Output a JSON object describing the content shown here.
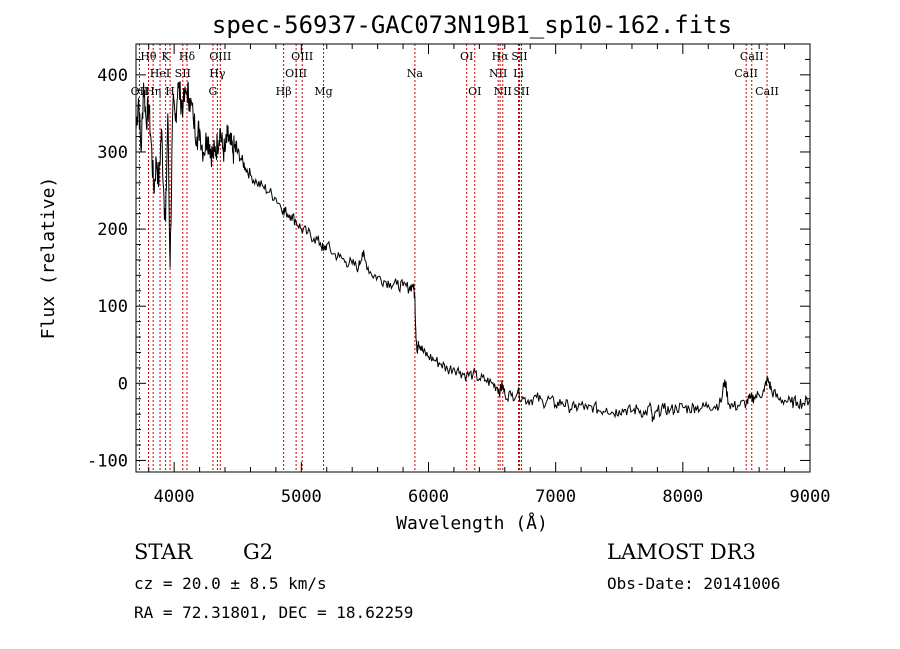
{
  "chart_data": {
    "type": "line",
    "title": "spec-56937-GAC073N19B1_sp10-162.fits",
    "xlabel": "Wavelength (Å)",
    "ylabel": "Flux (relative)",
    "xlim": [
      3700,
      9000
    ],
    "ylim": [
      -115,
      440
    ],
    "xticks": [
      4000,
      5000,
      6000,
      7000,
      8000,
      9000
    ],
    "yticks": [
      -100,
      0,
      100,
      200,
      300,
      400
    ],
    "line_color": "#000000",
    "marker_color": "#cc0000",
    "series": [
      {
        "name": "flux",
        "x": [
          3700,
          3720,
          3740,
          3760,
          3780,
          3800,
          3820,
          3840,
          3860,
          3880,
          3900,
          3920,
          3933,
          3950,
          3968,
          3990,
          4010,
          4030,
          4050,
          4070,
          4101,
          4120,
          4150,
          4180,
          4200,
          4230,
          4260,
          4280,
          4300,
          4320,
          4340,
          4360,
          4380,
          4400,
          4420,
          4440,
          4460,
          4480,
          4500,
          4530,
          4560,
          4600,
          4650,
          4700,
          4750,
          4800,
          4861,
          4880,
          4920,
          4960,
          5000,
          5050,
          5100,
          5150,
          5175,
          5200,
          5250,
          5300,
          5350,
          5400,
          5450,
          5480,
          5500,
          5550,
          5600,
          5650,
          5700,
          5750,
          5800,
          5850,
          5880,
          5893,
          5900,
          5910,
          5920,
          5940,
          5960,
          6000,
          6050,
          6100,
          6150,
          6200,
          6250,
          6300,
          6350,
          6400,
          6450,
          6500,
          6540,
          6563,
          6580,
          6600,
          6650,
          6700,
          6750,
          6800,
          6850,
          6900,
          6950,
          7000,
          7050,
          7100,
          7150,
          7200,
          7250,
          7300,
          7350,
          7400,
          7450,
          7500,
          7550,
          7600,
          7650,
          7700,
          7750,
          7760,
          7800,
          7850,
          7900,
          7950,
          8000,
          8050,
          8100,
          8150,
          8200,
          8250,
          8300,
          8330,
          8360,
          8400,
          8450,
          8500,
          8530,
          8560,
          8600,
          8640,
          8660,
          8680,
          8700,
          8750,
          8800,
          8850,
          8900,
          8950,
          9000
        ],
        "y": [
          330,
          370,
          300,
          390,
          340,
          360,
          310,
          250,
          290,
          260,
          330,
          240,
          210,
          350,
          150,
          360,
          340,
          390,
          370,
          360,
          380,
          370,
          345,
          320,
          330,
          300,
          320,
          310,
          295,
          300,
          310,
          330,
          305,
          300,
          320,
          310,
          300,
          305,
          300,
          290,
          280,
          270,
          260,
          255,
          248,
          240,
          225,
          222,
          218,
          210,
          200,
          195,
          188,
          182,
          172,
          180,
          168,
          164,
          158,
          155,
          150,
          170,
          160,
          142,
          138,
          133,
          130,
          128,
          126,
          124,
          128,
          110,
          70,
          40,
          55,
          48,
          40,
          35,
          30,
          25,
          18,
          20,
          15,
          10,
          12,
          6,
          4,
          0,
          -5,
          -10,
          -2,
          -14,
          -16,
          -12,
          -20,
          -22,
          -18,
          -25,
          -20,
          -28,
          -24,
          -30,
          -32,
          -28,
          -34,
          -30,
          -36,
          -32,
          -38,
          -35,
          -34,
          -36,
          -33,
          -40,
          -30,
          -50,
          -36,
          -33,
          -35,
          -32,
          -31,
          -33,
          -30,
          -32,
          -28,
          -30,
          -25,
          5,
          -26,
          -30,
          -28,
          -25,
          -20,
          -18,
          -15,
          -10,
          5,
          0,
          -10,
          -20,
          -22,
          -25,
          -24,
          -26,
          -20
        ]
      }
    ],
    "spectral_lines": [
      {
        "label": "Hθ",
        "wave": 3798,
        "row": 1
      },
      {
        "label": "OII",
        "wave": 3727,
        "row": 3
      },
      {
        "label": "Hη",
        "wave": 3835,
        "row": 3
      },
      {
        "label": "HeI",
        "wave": 3889,
        "row": 2
      },
      {
        "label": "K",
        "wave": 3933,
        "row": 1
      },
      {
        "label": "H",
        "wave": 3968,
        "row": 3
      },
      {
        "label": "SII",
        "wave": 4068,
        "row": 2
      },
      {
        "label": "Hδ",
        "wave": 4101,
        "row": 1
      },
      {
        "label": "OIII",
        "wave": 4363,
        "row": 1
      },
      {
        "label": "Hγ",
        "wave": 4340,
        "row": 2
      },
      {
        "label": "G",
        "wave": 4305,
        "row": 3
      },
      {
        "label": "Hβ",
        "wave": 4861,
        "row": 3
      },
      {
        "label": "OIII",
        "wave": 4959,
        "row": 2
      },
      {
        "label": "OIII",
        "wave": 5007,
        "row": 1
      },
      {
        "label": "Mg",
        "wave": 5175,
        "row": 3
      },
      {
        "label": "Na",
        "wave": 5893,
        "row": 2
      },
      {
        "label": "OI",
        "wave": 6300,
        "row": 1
      },
      {
        "label": "OI",
        "wave": 6364,
        "row": 3
      },
      {
        "label": "Hα",
        "wave": 6563,
        "row": 1
      },
      {
        "label": "NII",
        "wave": 6548,
        "row": 2
      },
      {
        "label": "NII",
        "wave": 6584,
        "row": 3
      },
      {
        "label": "Li",
        "wave": 6708,
        "row": 2
      },
      {
        "label": "SII",
        "wave": 6716,
        "row": 1
      },
      {
        "label": "SII",
        "wave": 6731,
        "row": 3
      },
      {
        "label": "CaII",
        "wave": 8498,
        "row": 2
      },
      {
        "label": "CaII",
        "wave": 8542,
        "row": 1
      },
      {
        "label": "CaII",
        "wave": 8662,
        "row": 3
      }
    ]
  },
  "info": {
    "object_class": "STAR",
    "subclass": "G2",
    "survey": "LAMOST DR3",
    "redshift": "cz = 20.0 ± 8.5 km/s",
    "obs_date": "Obs-Date: 20141006",
    "coords": "RA =  72.31801, DEC =  18.62259"
  }
}
